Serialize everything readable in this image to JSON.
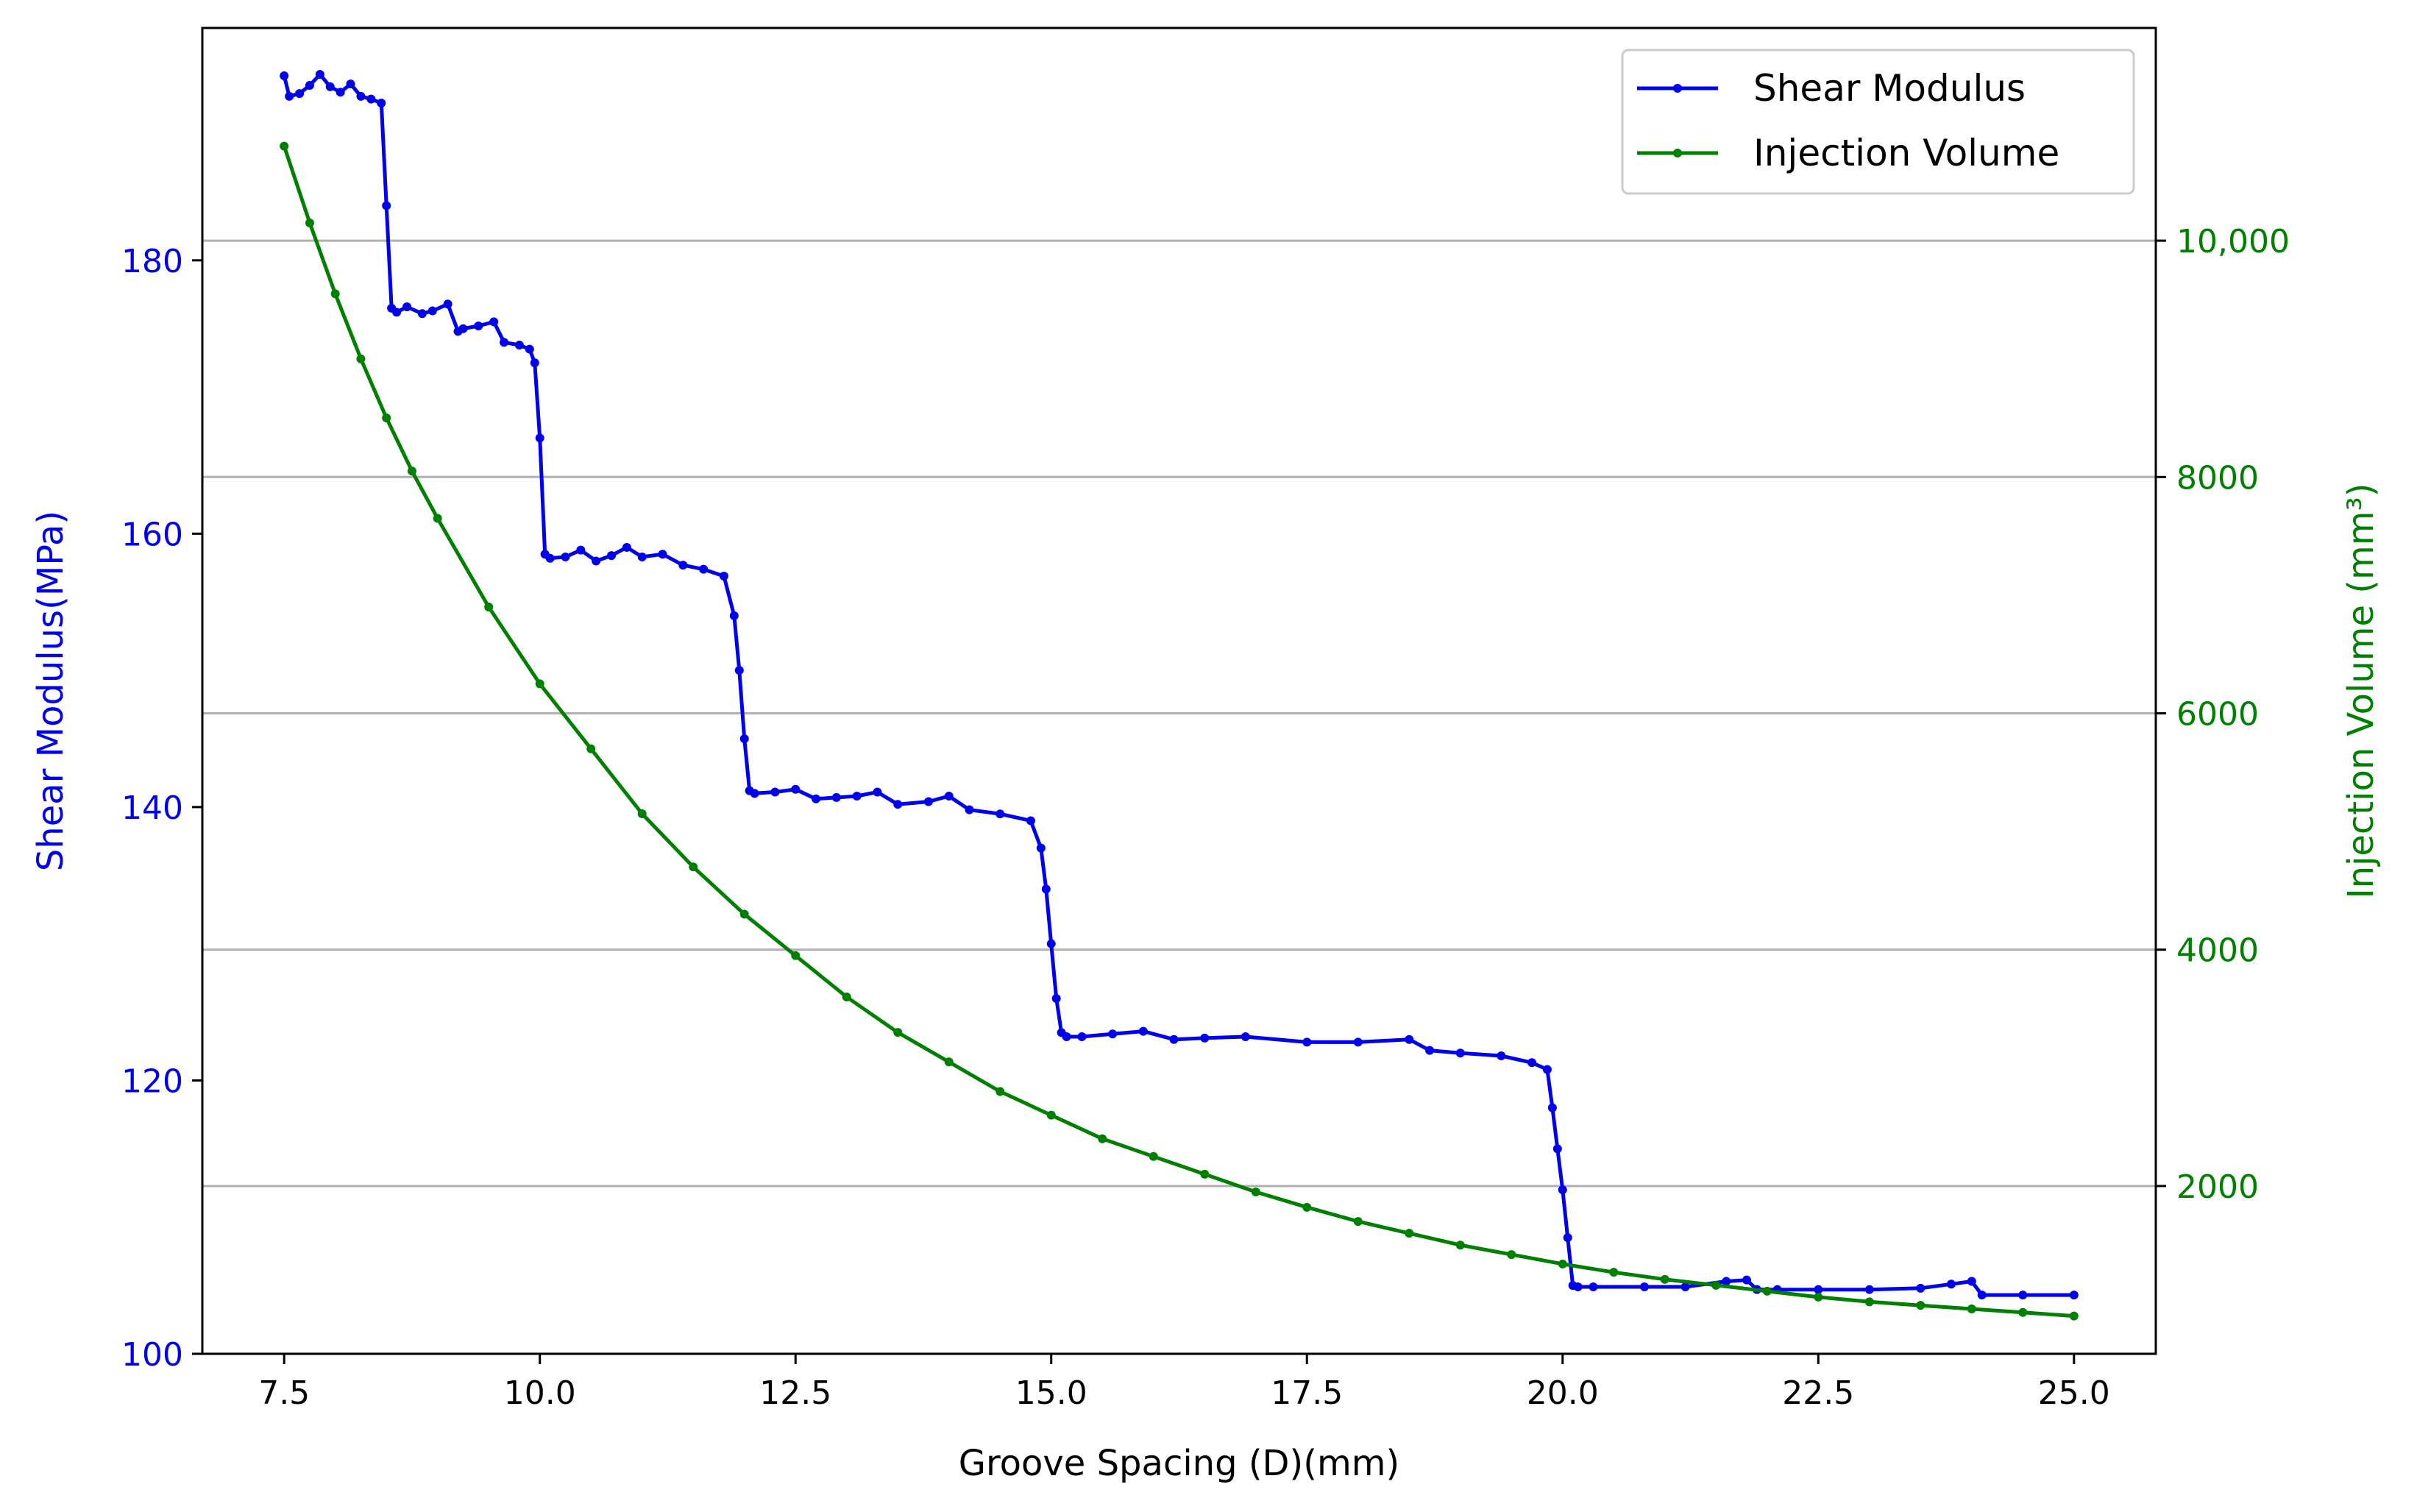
{
  "chart_data": {
    "type": "line",
    "xlabel": "Groove Spacing (D)(mm)",
    "ylabel_left": "Shear Modulus(MPa)",
    "ylabel_right": "Injection Volume (mm³)",
    "xlim": [
      6.7,
      25.8
    ],
    "ylim_left": [
      100,
      197
    ],
    "ylim_right": [
      580,
      11800
    ],
    "x_ticks": [
      7.5,
      10.0,
      12.5,
      15.0,
      17.5,
      20.0,
      22.5,
      25.0
    ],
    "x_tick_labels": [
      "7.5",
      "10.0",
      "12.5",
      "15.0",
      "17.5",
      "20.0",
      "22.5",
      "25.0"
    ],
    "y_left_ticks": [
      100,
      120,
      140,
      160,
      180
    ],
    "y_left_tick_labels": [
      "100",
      "120",
      "140",
      "160",
      "180"
    ],
    "y_right_ticks": [
      2000,
      4000,
      6000,
      8000,
      10000
    ],
    "y_right_tick_labels": [
      "2000",
      "4000",
      "6000",
      "8000",
      "10,000"
    ],
    "grid": "horizontal at right-axis ticks",
    "legend_position": "top-right",
    "colors": {
      "shear": "#0000ee",
      "injection": "#008000",
      "grid": "#b0b0b0"
    },
    "series": [
      {
        "name": "Shear Modulus",
        "axis": "left",
        "color": "#0000ee",
        "x": [
          7.5,
          7.55,
          7.65,
          7.75,
          7.85,
          7.95,
          8.05,
          8.15,
          8.25,
          8.35,
          8.45,
          8.5,
          8.55,
          8.6,
          8.7,
          8.85,
          8.95,
          9.1,
          9.2,
          9.25,
          9.4,
          9.55,
          9.65,
          9.8,
          9.9,
          9.95,
          10.0,
          10.05,
          10.1,
          10.25,
          10.4,
          10.55,
          10.7,
          10.85,
          11.0,
          11.2,
          11.4,
          11.6,
          11.8,
          11.9,
          11.95,
          12.0,
          12.05,
          12.1,
          12.3,
          12.5,
          12.7,
          12.9,
          13.1,
          13.3,
          13.5,
          13.8,
          14.0,
          14.2,
          14.5,
          14.8,
          14.9,
          14.95,
          15.0,
          15.05,
          15.1,
          15.15,
          15.3,
          15.6,
          15.9,
          16.2,
          16.5,
          16.9,
          17.5,
          18.0,
          18.5,
          18.7,
          19.0,
          19.4,
          19.7,
          19.85,
          19.9,
          19.95,
          20.0,
          20.05,
          20.1,
          20.15,
          20.3,
          20.8,
          21.2,
          21.6,
          21.8,
          21.9,
          22.1,
          22.5,
          23.0,
          23.5,
          23.8,
          24.0,
          24.1,
          24.5,
          25.0
        ],
        "y": [
          193.5,
          192.0,
          192.2,
          192.8,
          193.6,
          192.7,
          192.3,
          192.9,
          192.0,
          191.8,
          191.5,
          184.0,
          176.5,
          176.2,
          176.6,
          176.1,
          176.3,
          176.8,
          174.8,
          175.0,
          175.2,
          175.5,
          174.0,
          173.8,
          173.5,
          172.5,
          167.0,
          158.5,
          158.2,
          158.3,
          158.8,
          158.0,
          158.4,
          159.0,
          158.3,
          158.5,
          157.7,
          157.4,
          156.9,
          154.0,
          150.0,
          145.0,
          141.2,
          141.0,
          141.1,
          141.3,
          140.6,
          140.7,
          140.8,
          141.1,
          140.2,
          140.4,
          140.8,
          139.8,
          139.5,
          139.0,
          137.0,
          134.0,
          130.0,
          126.0,
          123.5,
          123.2,
          123.2,
          123.4,
          123.6,
          123.0,
          123.1,
          123.2,
          122.8,
          122.8,
          123.0,
          122.2,
          122.0,
          121.8,
          121.3,
          120.8,
          118.0,
          115.0,
          112.0,
          108.5,
          105.0,
          104.9,
          104.9,
          104.9,
          104.9,
          105.3,
          105.4,
          104.7,
          104.7,
          104.7,
          104.7,
          104.8,
          105.1,
          105.3,
          104.3,
          104.3,
          104.3
        ]
      },
      {
        "name": "Injection Volume",
        "axis": "right",
        "color": "#008000",
        "x": [
          7.5,
          7.75,
          8.0,
          8.25,
          8.5,
          8.75,
          9.0,
          9.5,
          10.0,
          10.5,
          11.0,
          11.5,
          12.0,
          12.5,
          13.0,
          13.5,
          14.0,
          14.5,
          15.0,
          15.5,
          16.0,
          16.5,
          17.0,
          17.5,
          18.0,
          18.5,
          19.0,
          19.5,
          20.0,
          20.5,
          21.0,
          21.5,
          22.0,
          22.5,
          23.0,
          23.5,
          24.0,
          24.5,
          25.0
        ],
        "y": [
          10800,
          10150,
          9550,
          9000,
          8500,
          8050,
          7650,
          6900,
          6250,
          5700,
          5150,
          4700,
          4300,
          3950,
          3600,
          3300,
          3050,
          2800,
          2600,
          2400,
          2250,
          2100,
          1950,
          1820,
          1700,
          1600,
          1500,
          1420,
          1340,
          1270,
          1210,
          1160,
          1110,
          1060,
          1020,
          990,
          960,
          930,
          900
        ]
      }
    ],
    "legend": [
      {
        "label": "Shear Modulus",
        "color": "#0000ee"
      },
      {
        "label": "Injection Volume",
        "color": "#008000"
      }
    ]
  }
}
